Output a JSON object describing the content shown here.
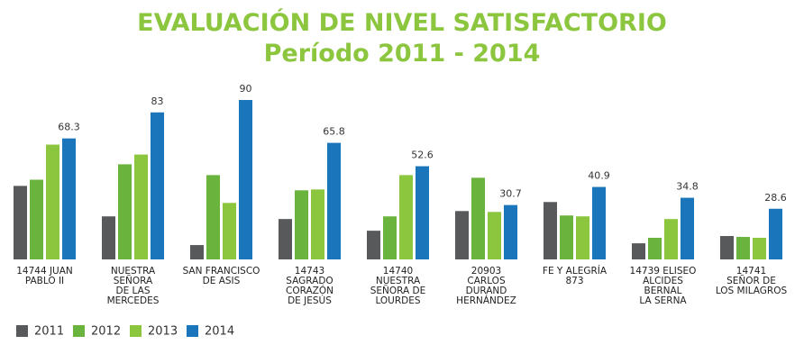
{
  "chart_data": {
    "type": "bar",
    "title": "EVALUACIÓN DE NIVEL SATISFACTORIO",
    "subtitle": "Período 2011 - 2014",
    "categories": [
      "14744 JUAN\nPABLO II",
      "NUESTRA\nSEÑORA\nDE LAS\nMERCEDES",
      "SAN FRANCISCO\nDE ASIS",
      "14743\nSAGRADO\nCORAZÓN\nDE JESÚS",
      "14740\nNUESTRA\nSEÑORA DE\nLOURDES",
      "20903\nCARLOS\nDURAND\nHERNÁNDEZ",
      "FE Y ALEGRÍA\n873",
      "14739 ELISEO\nALCIDES\nBERNAL\nLA SERNA",
      "14741\nSEÑOR DE\nLOS MILAGROS"
    ],
    "series": [
      {
        "name": "2011",
        "color": "#58595b",
        "values": [
          41.5,
          24.3,
          8.1,
          22.8,
          16.2,
          27.3,
          32.4,
          9.1,
          13.2
        ]
      },
      {
        "name": "2012",
        "color": "#6ab43e",
        "values": [
          45,
          53.7,
          47.6,
          39,
          24.3,
          46.1,
          24.8,
          12.2,
          12.7
        ]
      },
      {
        "name": "2013",
        "color": "#8cc63f",
        "values": [
          64.8,
          59.2,
          31.9,
          39.5,
          47.6,
          26.8,
          24.3,
          22.8,
          12.2
        ]
      },
      {
        "name": "2014",
        "color": "#1a75bb",
        "values": [
          68.3,
          83,
          90,
          65.8,
          52.6,
          30.7,
          40.9,
          34.8,
          28.6
        ],
        "labels": true
      }
    ],
    "legend": "bottom-left"
  }
}
